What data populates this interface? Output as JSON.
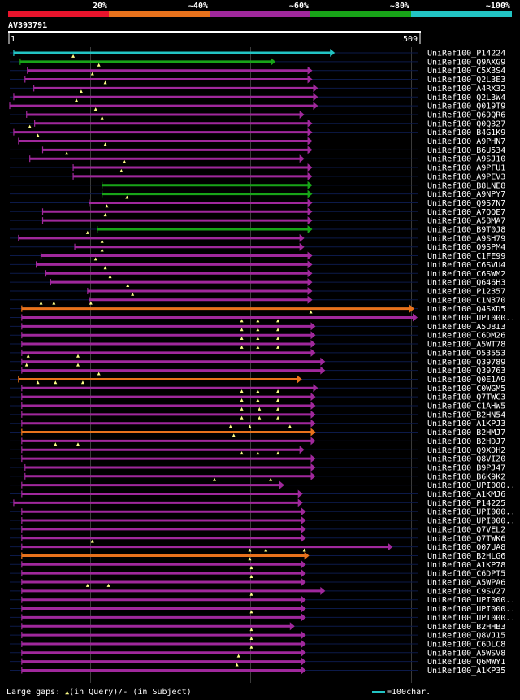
{
  "chart_data": {
    "type": "alignment-overview",
    "query": "AV393791",
    "scale_start": "1",
    "scale_end": "509",
    "query_length": 509,
    "scale_chars": 100,
    "legend": [
      {
        "label": "20%",
        "color": "#e8142c"
      },
      {
        "label": "~40%",
        "color": "#e8721c"
      },
      {
        "label": "~60%",
        "color": "#a0289c"
      },
      {
        "label": "~80%",
        "color": "#18a418"
      },
      {
        "label": "~100%",
        "color": "#22c4c4"
      }
    ],
    "hits": [
      {
        "id": "UniRef100_P14224",
        "start": 6,
        "end": 406,
        "cls": 4,
        "gaps": []
      },
      {
        "id": "UniRef100_Q9AXG9",
        "start": 14,
        "end": 332,
        "cls": 3,
        "gaps": [
          80
        ]
      },
      {
        "id": "UniRef100_C5X3S4",
        "start": 23,
        "end": 378,
        "cls": 2,
        "gaps": [
          112
        ]
      },
      {
        "id": "UniRef100_Q2L3E3",
        "start": 20,
        "end": 378,
        "cls": 2,
        "gaps": [
          104
        ]
      },
      {
        "id": "UniRef100_A4RX32",
        "start": 31,
        "end": 385,
        "cls": 2,
        "gaps": [
          120
        ]
      },
      {
        "id": "UniRef100_Q2L3W4",
        "start": 6,
        "end": 385,
        "cls": 2,
        "gaps": [
          90
        ]
      },
      {
        "id": "UniRef100_Q019T9",
        "start": 1,
        "end": 385,
        "cls": 2,
        "gaps": [
          84
        ]
      },
      {
        "id": "UniRef100_Q69QR6",
        "start": 22,
        "end": 368,
        "cls": 2,
        "gaps": [
          108
        ]
      },
      {
        "id": "UniRef100_Q0Q327",
        "start": 32,
        "end": 378,
        "cls": 2,
        "gaps": [
          116
        ]
      },
      {
        "id": "UniRef100_B4G1K9",
        "start": 6,
        "end": 378,
        "cls": 2,
        "gaps": [
          26
        ]
      },
      {
        "id": "UniRef100_A9PHN7",
        "start": 12,
        "end": 378,
        "cls": 2,
        "gaps": [
          36
        ]
      },
      {
        "id": "UniRef100_B6U534",
        "start": 42,
        "end": 378,
        "cls": 2,
        "gaps": [
          120
        ]
      },
      {
        "id": "UniRef100_A9SJ10",
        "start": 26,
        "end": 368,
        "cls": 2,
        "gaps": [
          72
        ]
      },
      {
        "id": "UniRef100_A9PFU1",
        "start": 80,
        "end": 378,
        "cls": 2,
        "gaps": [
          144
        ]
      },
      {
        "id": "UniRef100_A9PEV3",
        "start": 80,
        "end": 378,
        "cls": 2,
        "gaps": [
          140
        ]
      },
      {
        "id": "UniRef100_B8LNE8",
        "start": 116,
        "end": 378,
        "cls": 3,
        "gaps": []
      },
      {
        "id": "UniRef100_A9NPY7",
        "start": 116,
        "end": 378,
        "cls": 3,
        "gaps": []
      },
      {
        "id": "UniRef100_Q9S7N7",
        "start": 100,
        "end": 378,
        "cls": 2,
        "gaps": [
          147
        ]
      },
      {
        "id": "UniRef100_A7QQE7",
        "start": 42,
        "end": 378,
        "cls": 2,
        "gaps": [
          122
        ]
      },
      {
        "id": "UniRef100_A5BMA7",
        "start": 42,
        "end": 378,
        "cls": 2,
        "gaps": [
          120
        ]
      },
      {
        "id": "UniRef100_B9T0J8",
        "start": 110,
        "end": 378,
        "cls": 3,
        "gaps": []
      },
      {
        "id": "UniRef100_A9SH79",
        "start": 12,
        "end": 368,
        "cls": 2,
        "gaps": [
          98
        ]
      },
      {
        "id": "UniRef100_Q9SPM4",
        "start": 82,
        "end": 368,
        "cls": 2,
        "gaps": [
          116
        ]
      },
      {
        "id": "UniRef100_C1FE99",
        "start": 40,
        "end": 378,
        "cls": 2,
        "gaps": [
          116
        ]
      },
      {
        "id": "UniRef100_C6SVU4",
        "start": 34,
        "end": 378,
        "cls": 2,
        "gaps": [
          108
        ]
      },
      {
        "id": "UniRef100_C6SWM2",
        "start": 46,
        "end": 378,
        "cls": 2,
        "gaps": [
          120
        ]
      },
      {
        "id": "UniRef100_Q646H3",
        "start": 52,
        "end": 378,
        "cls": 2,
        "gaps": [
          126
        ]
      },
      {
        "id": "UniRef100_P12357",
        "start": 98,
        "end": 378,
        "cls": 2,
        "gaps": [
          148
        ]
      },
      {
        "id": "UniRef100_C1N370",
        "start": 100,
        "end": 378,
        "cls": 2,
        "gaps": [
          154
        ]
      },
      {
        "id": "UniRef100_Q4SXD5",
        "start": 16,
        "end": 505,
        "cls": 1,
        "gaps": [
          40,
          56,
          102
        ]
      },
      {
        "id": "UniRef100_UPI000..",
        "start": 16,
        "end": 509,
        "cls": 2,
        "gaps": [
          376
        ]
      },
      {
        "id": "UniRef100_A5U8I3",
        "start": 16,
        "end": 382,
        "cls": 2,
        "gaps": [
          290,
          310,
          335
        ]
      },
      {
        "id": "UniRef100_C6DM26",
        "start": 16,
        "end": 382,
        "cls": 2,
        "gaps": [
          290,
          310,
          335
        ]
      },
      {
        "id": "UniRef100_A5WT78",
        "start": 16,
        "end": 382,
        "cls": 2,
        "gaps": [
          290,
          310,
          335
        ]
      },
      {
        "id": "UniRef100_O53553",
        "start": 16,
        "end": 382,
        "cls": 2,
        "gaps": [
          290,
          310,
          335
        ]
      },
      {
        "id": "UniRef100_Q39789",
        "start": 16,
        "end": 394,
        "cls": 2,
        "gaps": [
          24,
          86
        ]
      },
      {
        "id": "UniRef100_Q39763",
        "start": 16,
        "end": 394,
        "cls": 2,
        "gaps": [
          22,
          86
        ]
      },
      {
        "id": "UniRef100_Q0E1A9",
        "start": 12,
        "end": 365,
        "cls": 1,
        "gaps": [
          112
        ]
      },
      {
        "id": "UniRef100_C0WGM5",
        "start": 16,
        "end": 385,
        "cls": 2,
        "gaps": [
          36,
          58,
          92
        ]
      },
      {
        "id": "UniRef100_Q7TWC3",
        "start": 16,
        "end": 382,
        "cls": 2,
        "gaps": [
          290,
          310,
          335
        ]
      },
      {
        "id": "UniRef100_C1AHW5",
        "start": 16,
        "end": 382,
        "cls": 2,
        "gaps": [
          290,
          310,
          335
        ]
      },
      {
        "id": "UniRef100_B2HN54",
        "start": 16,
        "end": 382,
        "cls": 2,
        "gaps": [
          290,
          312,
          335
        ]
      },
      {
        "id": "UniRef100_A1KPJ3",
        "start": 16,
        "end": 382,
        "cls": 2,
        "gaps": [
          290,
          312,
          335
        ]
      },
      {
        "id": "UniRef100_B2HMJ7",
        "start": 16,
        "end": 382,
        "cls": 1,
        "gaps": [
          276,
          300,
          350
        ]
      },
      {
        "id": "UniRef100_B2HDJ7",
        "start": 16,
        "end": 382,
        "cls": 2,
        "gaps": [
          280
        ]
      },
      {
        "id": "UniRef100_Q9XDH2",
        "start": 16,
        "end": 368,
        "cls": 2,
        "gaps": [
          58,
          86
        ]
      },
      {
        "id": "UniRef100_Q8VIZ0",
        "start": 16,
        "end": 382,
        "cls": 2,
        "gaps": [
          290,
          310,
          335
        ]
      },
      {
        "id": "UniRef100_B9PJ47",
        "start": 20,
        "end": 382,
        "cls": 2,
        "gaps": []
      },
      {
        "id": "UniRef100_B6K9K2",
        "start": 20,
        "end": 382,
        "cls": 2,
        "gaps": []
      },
      {
        "id": "UniRef100_UPI000..",
        "start": 16,
        "end": 343,
        "cls": 2,
        "gaps": [
          256,
          326
        ]
      },
      {
        "id": "UniRef100_A1KMJ6",
        "start": 16,
        "end": 366,
        "cls": 2,
        "gaps": []
      },
      {
        "id": "UniRef100_P14225",
        "start": 6,
        "end": 366,
        "cls": 2,
        "gaps": []
      },
      {
        "id": "UniRef100_UPI000..",
        "start": 16,
        "end": 370,
        "cls": 2,
        "gaps": []
      },
      {
        "id": "UniRef100_UPI000..",
        "start": 16,
        "end": 370,
        "cls": 2,
        "gaps": []
      },
      {
        "id": "UniRef100_Q7VEL2",
        "start": 16,
        "end": 370,
        "cls": 2,
        "gaps": []
      },
      {
        "id": "UniRef100_Q7TWK6",
        "start": 16,
        "end": 370,
        "cls": 2,
        "gaps": []
      },
      {
        "id": "UniRef100_Q07UA8",
        "start": 16,
        "end": 478,
        "cls": 2,
        "gaps": [
          104
        ]
      },
      {
        "id": "UniRef100_B2HLG6",
        "start": 16,
        "end": 374,
        "cls": 1,
        "gaps": [
          300,
          320,
          368
        ]
      },
      {
        "id": "UniRef100_A1KP78",
        "start": 16,
        "end": 370,
        "cls": 2,
        "gaps": [
          300
        ]
      },
      {
        "id": "UniRef100_C6DPT5",
        "start": 16,
        "end": 370,
        "cls": 2,
        "gaps": [
          302
        ]
      },
      {
        "id": "UniRef100_A5WPA6",
        "start": 16,
        "end": 370,
        "cls": 2,
        "gaps": [
          302
        ]
      },
      {
        "id": "UniRef100_C9SV27",
        "start": 16,
        "end": 394,
        "cls": 2,
        "gaps": [
          98,
          124
        ]
      },
      {
        "id": "UniRef100_UPI000..",
        "start": 16,
        "end": 370,
        "cls": 2,
        "gaps": [
          302
        ]
      },
      {
        "id": "UniRef100_UPI000..",
        "start": 16,
        "end": 370,
        "cls": 2,
        "gaps": []
      },
      {
        "id": "UniRef100_UPI000..",
        "start": 16,
        "end": 370,
        "cls": 2,
        "gaps": [
          302
        ]
      },
      {
        "id": "UniRef100_B2HHB3",
        "start": 16,
        "end": 356,
        "cls": 2,
        "gaps": []
      },
      {
        "id": "UniRef100_Q8VJ15",
        "start": 16,
        "end": 370,
        "cls": 2,
        "gaps": [
          302
        ]
      },
      {
        "id": "UniRef100_C6DLC8",
        "start": 16,
        "end": 370,
        "cls": 2,
        "gaps": [
          302
        ]
      },
      {
        "id": "UniRef100_A5WSV8",
        "start": 16,
        "end": 370,
        "cls": 2,
        "gaps": [
          302
        ]
      },
      {
        "id": "UniRef100_Q6MWY1",
        "start": 16,
        "end": 370,
        "cls": 2,
        "gaps": [
          286
        ]
      },
      {
        "id": "UniRef100_A1KP35",
        "start": 16,
        "end": 370,
        "cls": 2,
        "gaps": [
          284
        ]
      }
    ]
  },
  "footer": {
    "gaps_text": "Large gaps:",
    "gaps_in_query": "(in Query)/- (in Subject)",
    "scale_label": "=100char."
  }
}
